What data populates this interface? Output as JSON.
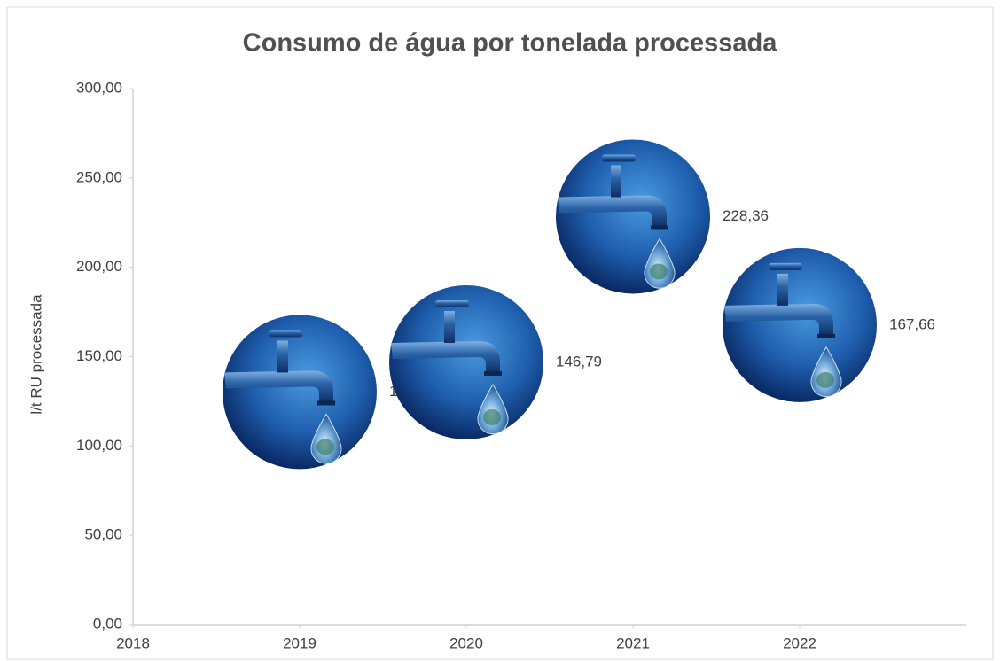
{
  "chart_data": {
    "type": "scatter",
    "title": "Consumo de água por tonelada processada",
    "y_label": "l/t RU processada",
    "x": [
      2019,
      2020,
      2021,
      2022
    ],
    "values": [
      130.2,
      146.79,
      228.36,
      167.66
    ],
    "value_labels": [
      "130,20",
      "146,79",
      "228,36",
      "167,66"
    ],
    "xlim": [
      2018,
      2023
    ],
    "xticks": [
      2018,
      2019,
      2020,
      2021,
      2022
    ],
    "ylim": [
      0,
      300
    ],
    "yticks": [
      {
        "value": 0,
        "label": "0,00"
      },
      {
        "value": 50,
        "label": "50,00"
      },
      {
        "value": 100,
        "label": "100,00"
      },
      {
        "value": 150,
        "label": "150,00"
      },
      {
        "value": 200,
        "label": "200,00"
      },
      {
        "value": 250,
        "label": "250,00"
      },
      {
        "value": 300,
        "label": "300,00"
      }
    ],
    "grid": false,
    "color": "#1d5aa8"
  }
}
